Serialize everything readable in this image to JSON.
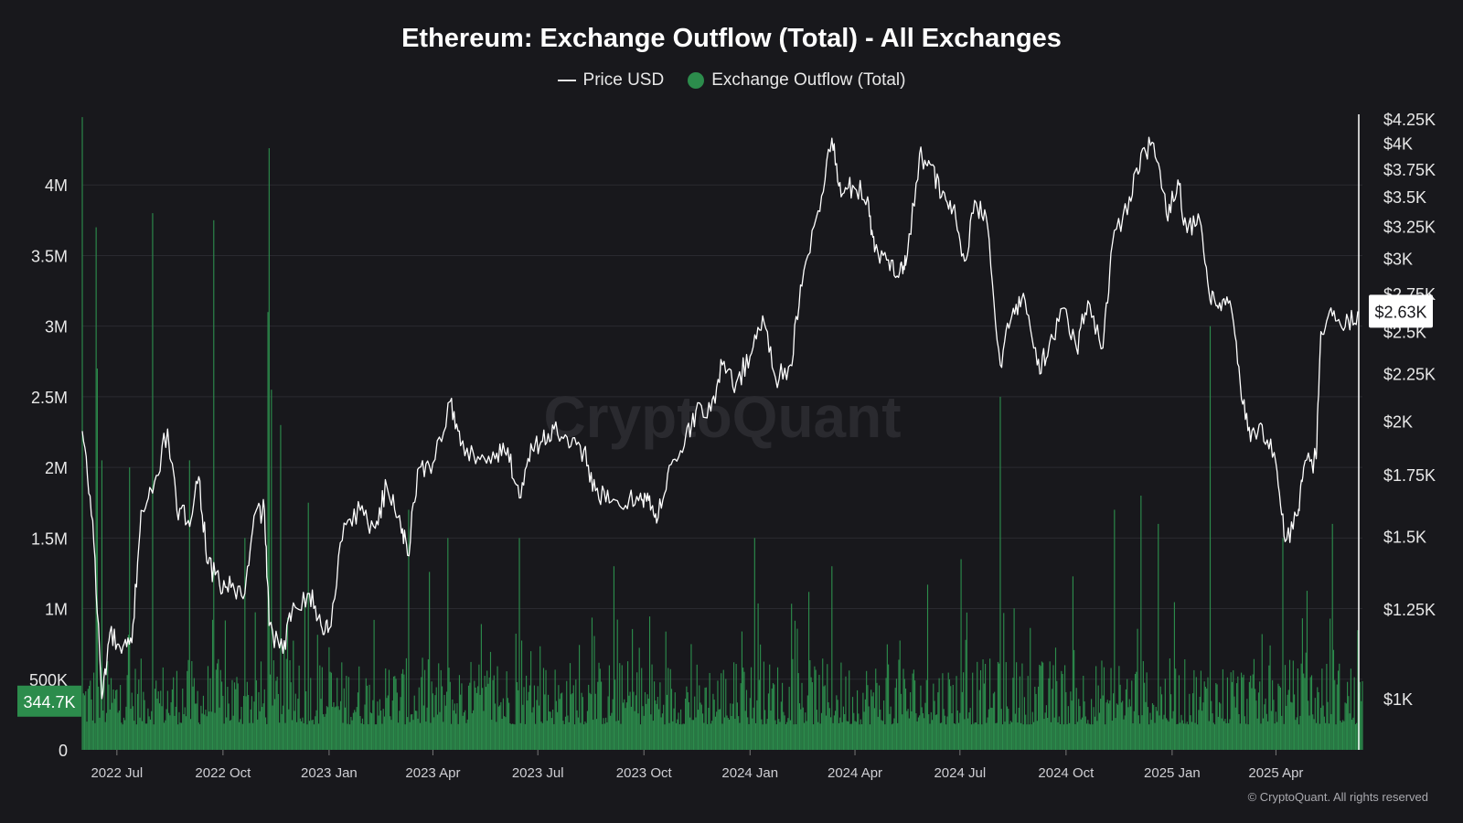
{
  "chart_data": {
    "type": "bar+line",
    "title": "Ethereum: Exchange Outflow (Total) - All Exchanges",
    "watermark": "CryptoQuant",
    "copyright": "© CryptoQuant. All rights reserved",
    "colors": {
      "background": "#18181c",
      "bars": "#2c8c4c",
      "price_line": "#ffffff",
      "grid": "#2a2a30"
    },
    "legend": {
      "position": "top-center",
      "entries": [
        "Price USD",
        "Exchange Outflow (Total)"
      ]
    },
    "x_axis": {
      "range": [
        "2022-06-01",
        "2025-06-15"
      ],
      "ticks": [
        {
          "date": "2022-07-01",
          "label": "2022 Jul"
        },
        {
          "date": "2022-10-01",
          "label": "2022 Oct"
        },
        {
          "date": "2023-01-01",
          "label": "2023 Jan"
        },
        {
          "date": "2023-04-01",
          "label": "2023 Apr"
        },
        {
          "date": "2023-07-01",
          "label": "2023 Jul"
        },
        {
          "date": "2023-10-01",
          "label": "2023 Oct"
        },
        {
          "date": "2024-01-01",
          "label": "2024 Jan"
        },
        {
          "date": "2024-04-01",
          "label": "2024 Apr"
        },
        {
          "date": "2024-07-01",
          "label": "2024 Jul"
        },
        {
          "date": "2024-10-01",
          "label": "2024 Oct"
        },
        {
          "date": "2025-01-01",
          "label": "2025 Jan"
        },
        {
          "date": "2025-04-01",
          "label": "2025 Apr"
        }
      ]
    },
    "left_axis": {
      "min": 0,
      "max": 4500000,
      "grid": true,
      "ticks": [
        {
          "value": 0,
          "label": "0"
        },
        {
          "value": 500000,
          "label": "500K"
        },
        {
          "value": 1000000,
          "label": "1M"
        },
        {
          "value": 1500000,
          "label": "1.5M"
        },
        {
          "value": 2000000,
          "label": "2M"
        },
        {
          "value": 2500000,
          "label": "2.5M"
        },
        {
          "value": 3000000,
          "label": "3M"
        },
        {
          "value": 3500000,
          "label": "3.5M"
        },
        {
          "value": 4000000,
          "label": "4M"
        }
      ]
    },
    "right_axis": {
      "scale": "log",
      "min": 880,
      "max": 4300,
      "ticks": [
        {
          "value": 1000,
          "label": "$1K"
        },
        {
          "value": 1250,
          "label": "$1.25K"
        },
        {
          "value": 1500,
          "label": "$1.5K"
        },
        {
          "value": 1750,
          "label": "$1.75K"
        },
        {
          "value": 2000,
          "label": "$2K"
        },
        {
          "value": 2250,
          "label": "$2.25K"
        },
        {
          "value": 2500,
          "label": "$2.5K"
        },
        {
          "value": 2750,
          "label": "$2.75K"
        },
        {
          "value": 3000,
          "label": "$3K"
        },
        {
          "value": 3250,
          "label": "$3.25K"
        },
        {
          "value": 3500,
          "label": "$3.5K"
        },
        {
          "value": 3750,
          "label": "$3.75K"
        },
        {
          "value": 4000,
          "label": "$4K"
        },
        {
          "value": 4250,
          "label": "$4.25K"
        }
      ]
    },
    "last_values": {
      "outflow_label": "344.7K",
      "price_label": "$2.63K"
    },
    "series": [
      {
        "name": "Price USD",
        "axis": "right",
        "points": [
          [
            "2022-06-01",
            1950
          ],
          [
            "2022-06-10",
            1560
          ],
          [
            "2022-06-18",
            1000
          ],
          [
            "2022-06-25",
            1180
          ],
          [
            "2022-07-05",
            1120
          ],
          [
            "2022-07-14",
            1150
          ],
          [
            "2022-07-22",
            1600
          ],
          [
            "2022-08-01",
            1670
          ],
          [
            "2022-08-14",
            1960
          ],
          [
            "2022-08-22",
            1600
          ],
          [
            "2022-09-01",
            1560
          ],
          [
            "2022-09-10",
            1740
          ],
          [
            "2022-09-18",
            1400
          ],
          [
            "2022-09-28",
            1330
          ],
          [
            "2022-10-08",
            1320
          ],
          [
            "2022-10-20",
            1300
          ],
          [
            "2022-10-29",
            1590
          ],
          [
            "2022-11-06",
            1600
          ],
          [
            "2022-11-10",
            1200
          ],
          [
            "2022-11-22",
            1120
          ],
          [
            "2022-12-01",
            1270
          ],
          [
            "2022-12-15",
            1300
          ],
          [
            "2022-12-25",
            1200
          ],
          [
            "2023-01-01",
            1190
          ],
          [
            "2023-01-14",
            1550
          ],
          [
            "2023-01-28",
            1600
          ],
          [
            "2023-02-10",
            1530
          ],
          [
            "2023-02-20",
            1700
          ],
          [
            "2023-03-03",
            1580
          ],
          [
            "2023-03-10",
            1430
          ],
          [
            "2023-03-20",
            1780
          ],
          [
            "2023-04-01",
            1800
          ],
          [
            "2023-04-16",
            2100
          ],
          [
            "2023-04-25",
            1880
          ],
          [
            "2023-05-10",
            1830
          ],
          [
            "2023-05-25",
            1820
          ],
          [
            "2023-06-05",
            1870
          ],
          [
            "2023-06-15",
            1650
          ],
          [
            "2023-06-25",
            1890
          ],
          [
            "2023-07-05",
            1900
          ],
          [
            "2023-07-15",
            1960
          ],
          [
            "2023-07-28",
            1870
          ],
          [
            "2023-08-10",
            1860
          ],
          [
            "2023-08-20",
            1680
          ],
          [
            "2023-09-01",
            1630
          ],
          [
            "2023-09-15",
            1620
          ],
          [
            "2023-09-28",
            1670
          ],
          [
            "2023-10-05",
            1640
          ],
          [
            "2023-10-12",
            1550
          ],
          [
            "2023-10-23",
            1790
          ],
          [
            "2023-11-05",
            1880
          ],
          [
            "2023-11-15",
            2050
          ],
          [
            "2023-11-28",
            2050
          ],
          [
            "2023-12-08",
            2300
          ],
          [
            "2023-12-20",
            2200
          ],
          [
            "2024-01-01",
            2350
          ],
          [
            "2024-01-12",
            2600
          ],
          [
            "2024-01-23",
            2230
          ],
          [
            "2024-02-05",
            2300
          ],
          [
            "2024-02-15",
            2800
          ],
          [
            "2024-02-29",
            3380
          ],
          [
            "2024-03-12",
            4050
          ],
          [
            "2024-03-20",
            3500
          ],
          [
            "2024-03-30",
            3600
          ],
          [
            "2024-04-12",
            3500
          ],
          [
            "2024-04-18",
            3050
          ],
          [
            "2024-04-30",
            2990
          ],
          [
            "2024-05-10",
            2910
          ],
          [
            "2024-05-15",
            2950
          ],
          [
            "2024-05-27",
            3900
          ],
          [
            "2024-06-05",
            3800
          ],
          [
            "2024-06-15",
            3500
          ],
          [
            "2024-06-25",
            3400
          ],
          [
            "2024-07-05",
            2980
          ],
          [
            "2024-07-15",
            3450
          ],
          [
            "2024-07-25",
            3250
          ],
          [
            "2024-08-05",
            2300
          ],
          [
            "2024-08-15",
            2600
          ],
          [
            "2024-08-25",
            2750
          ],
          [
            "2024-09-06",
            2300
          ],
          [
            "2024-09-15",
            2350
          ],
          [
            "2024-09-28",
            2650
          ],
          [
            "2024-10-10",
            2400
          ],
          [
            "2024-10-20",
            2700
          ],
          [
            "2024-11-02",
            2400
          ],
          [
            "2024-11-10",
            3100
          ],
          [
            "2024-11-25",
            3500
          ],
          [
            "2024-12-05",
            3900
          ],
          [
            "2024-12-16",
            4000
          ],
          [
            "2024-12-27",
            3350
          ],
          [
            "2025-01-06",
            3650
          ],
          [
            "2025-01-14",
            3200
          ],
          [
            "2025-01-25",
            3300
          ],
          [
            "2025-02-03",
            2700
          ],
          [
            "2025-02-10",
            2650
          ],
          [
            "2025-02-20",
            2700
          ],
          [
            "2025-03-01",
            2200
          ],
          [
            "2025-03-10",
            1900
          ],
          [
            "2025-03-20",
            1980
          ],
          [
            "2025-04-01",
            1800
          ],
          [
            "2025-04-09",
            1480
          ],
          [
            "2025-04-20",
            1580
          ],
          [
            "2025-04-25",
            1780
          ],
          [
            "2025-05-06",
            1820
          ],
          [
            "2025-05-10",
            2500
          ],
          [
            "2025-05-20",
            2600
          ],
          [
            "2025-05-31",
            2530
          ],
          [
            "2025-06-11",
            2630
          ]
        ]
      },
      {
        "name": "Exchange Outflow (Total)",
        "axis": "left",
        "type": "bar",
        "baseline_daily_range": [
          180000,
          650000
        ],
        "spikes": [
          [
            "2022-06-01",
            4480000
          ],
          [
            "2022-06-13",
            3700000
          ],
          [
            "2022-06-14",
            2700000
          ],
          [
            "2022-06-18",
            2050000
          ],
          [
            "2022-07-12",
            2000000
          ],
          [
            "2022-08-01",
            3800000
          ],
          [
            "2022-09-02",
            2050000
          ],
          [
            "2022-09-23",
            3750000
          ],
          [
            "2022-10-20",
            1500000
          ],
          [
            "2022-11-10",
            4260000
          ],
          [
            "2022-11-09",
            3100000
          ],
          [
            "2022-11-12",
            2550000
          ],
          [
            "2022-11-20",
            2300000
          ],
          [
            "2022-12-14",
            1750000
          ],
          [
            "2023-03-11",
            1700000
          ],
          [
            "2023-04-14",
            1500000
          ],
          [
            "2023-06-15",
            1500000
          ],
          [
            "2023-09-05",
            1300000
          ],
          [
            "2024-01-05",
            1500000
          ],
          [
            "2024-03-12",
            1300000
          ],
          [
            "2024-07-02",
            1350000
          ],
          [
            "2024-08-05",
            2500000
          ],
          [
            "2024-11-12",
            1700000
          ],
          [
            "2024-12-05",
            1800000
          ],
          [
            "2024-12-20",
            1600000
          ],
          [
            "2025-02-03",
            3000000
          ],
          [
            "2025-04-07",
            1500000
          ],
          [
            "2025-05-20",
            1600000
          ],
          [
            "2025-06-14",
            344700
          ]
        ]
      }
    ]
  }
}
